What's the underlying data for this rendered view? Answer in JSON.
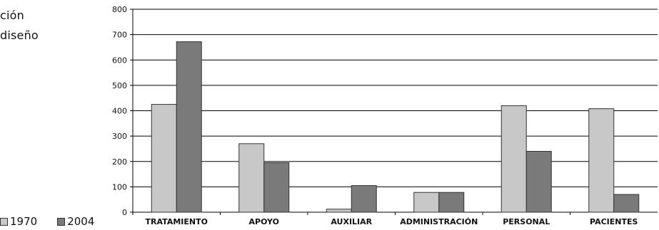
{
  "fragments": [
    "ción",
    "diseño"
  ],
  "chart_data": {
    "type": "bar",
    "categories": [
      "TRATAMIENTO",
      "APOYO",
      "AUXILIAR",
      "ADMINISTRACIÓN",
      "PERSONAL",
      "PACIENTES"
    ],
    "series": [
      {
        "name": "1970",
        "values": [
          425,
          270,
          12,
          78,
          420,
          408
        ],
        "color": "#c8c8c8"
      },
      {
        "name": "2004",
        "values": [
          672,
          195,
          105,
          78,
          240,
          70
        ],
        "color": "#7a7a7a"
      }
    ],
    "ylim": [
      0,
      800
    ],
    "yticks": [
      0,
      100,
      200,
      300,
      400,
      500,
      600,
      700,
      800
    ],
    "grid": true,
    "legend": "bottom-left"
  }
}
